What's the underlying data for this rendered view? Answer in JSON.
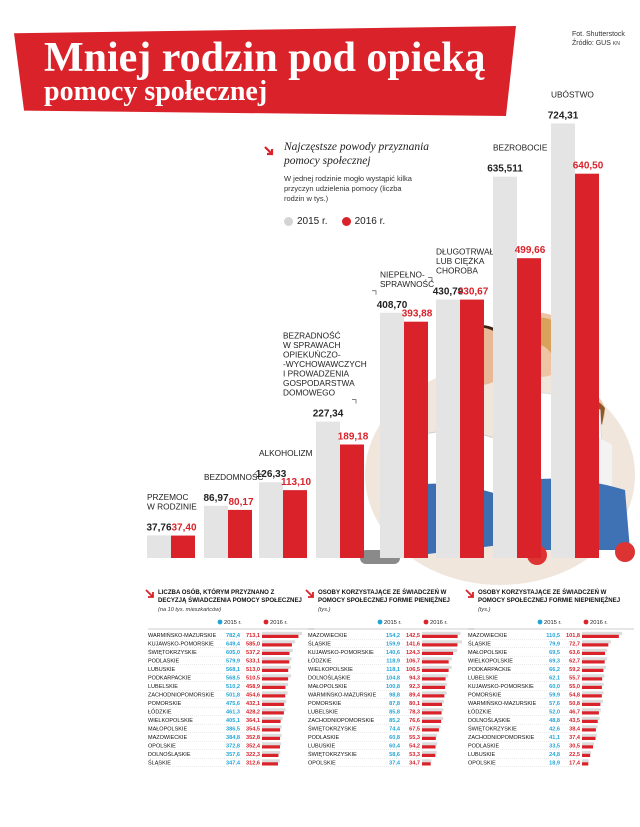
{
  "header": {
    "title_line1": "Mniej rodzin pod opieką",
    "title_line2": "pomocy społecznej",
    "credit_line1": "Fot. Shutterstock",
    "credit_line2": "Źródło: GUS",
    "credit_mark": "KN"
  },
  "colors": {
    "red": "#d9222a",
    "gray": "#e4e4e4",
    "blue": "#23a5d6"
  },
  "main_chart_text": {
    "subtitle": "Najczęstsze powody przyznania pomocy społecznej",
    "note": "W jednej rodzinie mogło wystąpić kilka przyczyn udzielenia pomocy (liczba rodzin w tys.)",
    "legend_2015": "2015 r.",
    "legend_2016": "2016 r."
  },
  "chart_data": [
    {
      "type": "bar",
      "categories": [
        "PRZEMOC W RODZINIE",
        "BEZDOMNOŚĆ",
        "ALKOHOLIZM",
        "BEZRADNOŚĆ W SPRAWACH OPIEKUŃCZO--WYCHOWAWCZYCH I PROWADZENIA GOSPODARSTWA DOMOWEGO",
        "NIEPEŁNO-SPRAWNOŚĆ",
        "DŁUGOTRWAŁA LUB CIĘŻKA CHOROBA",
        "BEZROBOCIE",
        "UBÓSTWO"
      ],
      "category_lines": [
        [
          "PRZEMOC",
          "W RODZINIE"
        ],
        [
          "BEZDOMNOŚĆ"
        ],
        [
          "ALKOHOLIZM"
        ],
        [
          "BEZRADNOŚĆ",
          "W SPRAWACH",
          "OPIEKUŃCZO-",
          "-WYCHOWAWCZYCH",
          "I PROWADZENIA",
          "GOSPODARSTWA",
          "DOMOWEGO"
        ],
        [
          "NIEPEŁNO-",
          "SPRAWNOŚĆ"
        ],
        [
          "DŁUGOTRWAŁA",
          "LUB CIĘŻKA",
          "CHOROBA"
        ],
        [
          "BEZROBOCIE"
        ],
        [
          "UBÓSTWO"
        ]
      ],
      "series": [
        {
          "name": "2015 r.",
          "values": [
            37.76,
            86.97,
            126.33,
            227.34,
            408.7,
            430.79,
            635.511,
            724.31
          ],
          "labels": [
            "37,76",
            "86,97",
            "126,33",
            "227,34",
            "408,70",
            "430,79",
            "635,511",
            "724,31"
          ]
        },
        {
          "name": "2016 r.",
          "values": [
            37.4,
            80.17,
            113.1,
            189.18,
            393.88,
            430.67,
            499.66,
            640.5
          ],
          "labels": [
            "37,40",
            "80,17",
            "113,10",
            "189,18",
            "393,88",
            "430,67",
            "499,66",
            "640,50"
          ]
        }
      ]
    },
    {
      "type": "table",
      "title": "Liczba osób, którym przyznano decyzją świadczenia z pomocy społecznej",
      "subtitle": "(na 10 tys. mieszkańców)",
      "legend": [
        "2015 r.",
        "2016 r."
      ],
      "rows": [
        {
          "region": "WARMIŃSKO-MAZURSKIE",
          "v2015": "782,4",
          "v2016": "713,1",
          "a": 782.4,
          "b": 713.1
        },
        {
          "region": "KUJAWSKO-POMORSKIE",
          "v2015": "649,4",
          "v2016": "585,0",
          "a": 649.4,
          "b": 585.0
        },
        {
          "region": "ŚWIĘTOKRZYSKIE",
          "v2015": "605,0",
          "v2016": "537,2",
          "a": 605.0,
          "b": 537.2
        },
        {
          "region": "PODLASKIE",
          "v2015": "579,9",
          "v2016": "533,1",
          "a": 579.9,
          "b": 533.1
        },
        {
          "region": "LUBUSKIE",
          "v2015": "568,1",
          "v2016": "513,0",
          "a": 568.1,
          "b": 513.0
        },
        {
          "region": "PODKARPACKIE",
          "v2015": "568,5",
          "v2016": "510,5",
          "a": 568.5,
          "b": 510.5
        },
        {
          "region": "LUBELSKIE",
          "v2015": "510,2",
          "v2016": "458,9",
          "a": 510.2,
          "b": 458.9
        },
        {
          "region": "ZACHODNIOPOMORSKIE",
          "v2015": "501,8",
          "v2016": "454,6",
          "a": 501.8,
          "b": 454.6
        },
        {
          "region": "POMORSKIE",
          "v2015": "475,6",
          "v2016": "432,1",
          "a": 475.6,
          "b": 432.1
        },
        {
          "region": "ŁÓDZKIE",
          "v2015": "461,3",
          "v2016": "428,2",
          "a": 461.3,
          "b": 428.2
        },
        {
          "region": "WIELKOPOLSKIE",
          "v2015": "405,1",
          "v2016": "364,1",
          "a": 405.1,
          "b": 364.1
        },
        {
          "region": "MAŁOPOLSKIE",
          "v2015": "386,5",
          "v2016": "354,5",
          "a": 386.5,
          "b": 354.5
        },
        {
          "region": "MAZOWIECKIE",
          "v2015": "384,8",
          "v2016": "352,8",
          "a": 384.8,
          "b": 352.8
        },
        {
          "region": "OPOLSKIE",
          "v2015": "372,8",
          "v2016": "352,4",
          "a": 372.8,
          "b": 352.4
        },
        {
          "region": "DOLNOŚLĄSKIE",
          "v2015": "357,6",
          "v2016": "322,3",
          "a": 357.6,
          "b": 322.3
        },
        {
          "region": "ŚLĄSKIE",
          "v2015": "347,4",
          "v2016": "312,6",
          "a": 347.4,
          "b": 312.6
        }
      ]
    },
    {
      "type": "table",
      "title": "Osoby korzystające ze świadczeń pomocy społecznej w formie pieniężnej",
      "subtitle": "(tys.)",
      "legend": [
        "2015 r.",
        "2016 r."
      ],
      "rows": [
        {
          "region": "MAZOWIECKIE",
          "v2015": "154,2",
          "v2016": "142,5",
          "a": 154.2,
          "b": 142.5
        },
        {
          "region": "ŚLĄSKIE",
          "v2015": "159,9",
          "v2016": "141,6",
          "a": 159.9,
          "b": 141.6
        },
        {
          "region": "KUJAWSKO-POMORSKIE",
          "v2015": "140,6",
          "v2016": "124,3",
          "a": 140.6,
          "b": 124.3
        },
        {
          "region": "ŁÓDZKIE",
          "v2015": "118,9",
          "v2016": "106,7",
          "a": 118.9,
          "b": 106.7
        },
        {
          "region": "WIELKOPOLSKIE",
          "v2015": "118,1",
          "v2016": "106,5",
          "a": 118.1,
          "b": 106.5
        },
        {
          "region": "DOLNOŚLĄSKIE",
          "v2015": "104,8",
          "v2016": "94,3",
          "a": 104.8,
          "b": 94.3
        },
        {
          "region": "MAŁOPOLSKIE",
          "v2015": "100,8",
          "v2016": "92,3",
          "a": 100.8,
          "b": 92.3
        },
        {
          "region": "WARMIŃSKO-MAZURSKIE",
          "v2015": "98,8",
          "v2016": "89,4",
          "a": 98.8,
          "b": 89.4
        },
        {
          "region": "POMORSKIE",
          "v2015": "87,8",
          "v2016": "80,1",
          "a": 87.8,
          "b": 80.1
        },
        {
          "region": "LUBELSKIE",
          "v2015": "85,8",
          "v2016": "78,3",
          "a": 85.8,
          "b": 78.3
        },
        {
          "region": "ZACHODNIOPOMORSKIE",
          "v2015": "85,2",
          "v2016": "76,6",
          "a": 85.2,
          "b": 76.6
        },
        {
          "region": "ŚWIĘTOKRZYSKIE",
          "v2015": "74,4",
          "v2016": "67,5",
          "a": 74.4,
          "b": 67.5
        },
        {
          "region": "PODLASKIE",
          "v2015": "60,8",
          "v2016": "55,3",
          "a": 60.8,
          "b": 55.3
        },
        {
          "region": "LUBUSKIE",
          "v2015": "60,4",
          "v2016": "54,2",
          "a": 60.4,
          "b": 54.2
        },
        {
          "region": "ŚWIĘTOKRZYSKIE",
          "v2015": "58,6",
          "v2016": "53,3",
          "a": 58.6,
          "b": 53.3
        },
        {
          "region": "OPOLSKIE",
          "v2015": "37,4",
          "v2016": "34,7",
          "a": 37.4,
          "b": 34.7
        }
      ]
    },
    {
      "type": "table",
      "title": "Osoby korzystające ze świadczeń pomocy społecznej w formie niepieniężnej",
      "subtitle": "(tys.)",
      "legend": [
        "2015 r.",
        "2016 r."
      ],
      "rows": [
        {
          "region": "MAZOWIECKIE",
          "v2015": "110,5",
          "v2016": "101,8",
          "a": 110.5,
          "b": 101.8
        },
        {
          "region": "ŚLĄSKIE",
          "v2015": "79,9",
          "v2016": "72,7",
          "a": 79.9,
          "b": 72.7
        },
        {
          "region": "MAŁOPOLSKIE",
          "v2015": "69,5",
          "v2016": "63,6",
          "a": 69.5,
          "b": 63.6
        },
        {
          "region": "WIELKOPOLSKIE",
          "v2015": "69,3",
          "v2016": "62,7",
          "a": 69.3,
          "b": 62.7
        },
        {
          "region": "PODKARPACKIE",
          "v2015": "66,2",
          "v2016": "59,2",
          "a": 66.2,
          "b": 59.2
        },
        {
          "region": "LUBELSKIE",
          "v2015": "62,1",
          "v2016": "55,7",
          "a": 62.1,
          "b": 55.7
        },
        {
          "region": "KUJAWSKO-POMORSKIE",
          "v2015": "60,0",
          "v2016": "55,0",
          "a": 60.0,
          "b": 55.0
        },
        {
          "region": "POMORSKIE",
          "v2015": "59,9",
          "v2016": "54,8",
          "a": 59.9,
          "b": 54.8
        },
        {
          "region": "WARMIŃSKO-MAZURSKIE",
          "v2015": "57,6",
          "v2016": "50,8",
          "a": 57.6,
          "b": 50.8
        },
        {
          "region": "ŁÓDZKIE",
          "v2015": "52,0",
          "v2016": "46,7",
          "a": 52.0,
          "b": 46.7
        },
        {
          "region": "DOLNOŚLĄSKIE",
          "v2015": "48,8",
          "v2016": "43,5",
          "a": 48.8,
          "b": 43.5
        },
        {
          "region": "ŚWIĘTOKRZYSKIE",
          "v2015": "42,6",
          "v2016": "38,4",
          "a": 42.6,
          "b": 38.4
        },
        {
          "region": "ZACHODNIOPOMORSKIE",
          "v2015": "41,1",
          "v2016": "37,4",
          "a": 41.1,
          "b": 37.4
        },
        {
          "region": "PODLASKIE",
          "v2015": "33,5",
          "v2016": "30,5",
          "a": 33.5,
          "b": 30.5
        },
        {
          "region": "LUBUSKIE",
          "v2015": "24,8",
          "v2016": "22,5",
          "a": 24.8,
          "b": 22.5
        },
        {
          "region": "OPOLSKIE",
          "v2015": "18,9",
          "v2016": "17,4",
          "a": 18.9,
          "b": 17.4
        }
      ]
    }
  ]
}
